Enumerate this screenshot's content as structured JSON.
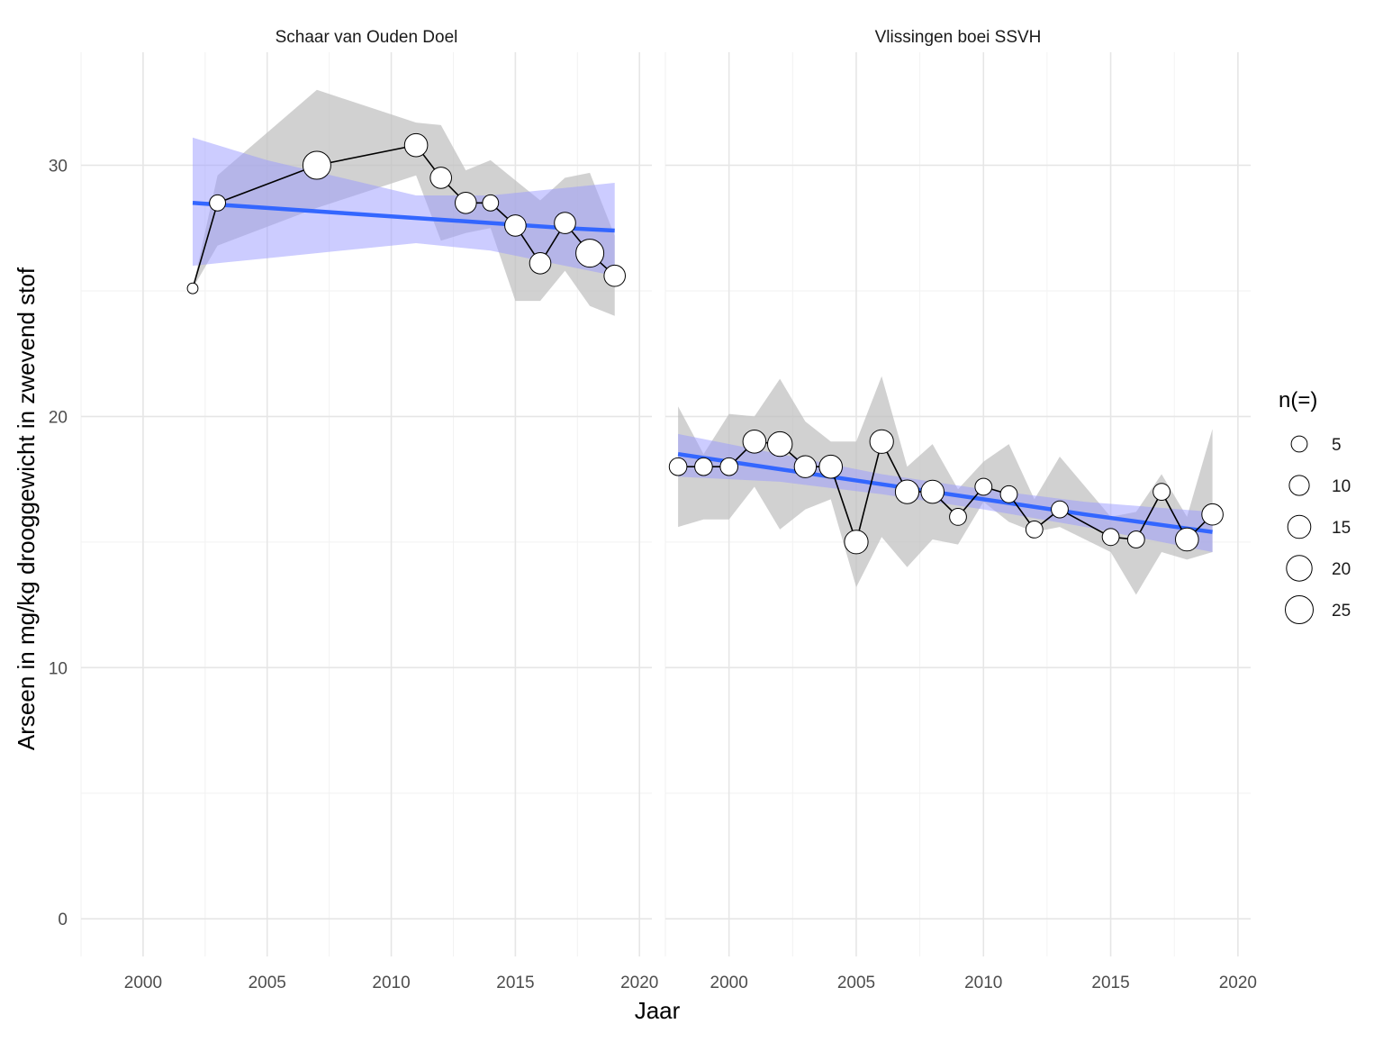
{
  "chart_data": {
    "type": "line",
    "xlabel": "Jaar",
    "ylabel": "Arseen in mg/kg drooggewicht in zwevend stof",
    "xlim": [
      1997.5,
      2020.5
    ],
    "ylim": [
      -1.5,
      34.5
    ],
    "x_ticks": [
      2000,
      2005,
      2010,
      2015,
      2020
    ],
    "y_ticks": [
      0,
      10,
      20,
      30
    ],
    "grid": true,
    "colors": {
      "trend_line": "#3366ff",
      "trend_band": "#9999ff",
      "range_band": "#bebebe",
      "point_fill": "#ffffff",
      "point_stroke": "#000000",
      "grid": "#e6e6e6"
    },
    "legend": {
      "title": "n(=)",
      "placement": "right",
      "sizes": [
        5,
        10,
        15,
        20,
        25
      ],
      "labels": [
        "5",
        "10",
        "15",
        "20",
        "25"
      ]
    },
    "panels": [
      {
        "strip": "Schaar van Ouden Doel",
        "points": [
          {
            "x": 2002,
            "y": 25.1,
            "n": 1
          },
          {
            "x": 2003,
            "y": 28.5,
            "n": 5
          },
          {
            "x": 2007,
            "y": 30.0,
            "n": 25
          },
          {
            "x": 2011,
            "y": 30.8,
            "n": 15
          },
          {
            "x": 2012,
            "y": 29.5,
            "n": 12
          },
          {
            "x": 2013,
            "y": 28.5,
            "n": 12
          },
          {
            "x": 2014,
            "y": 28.5,
            "n": 5
          },
          {
            "x": 2015,
            "y": 27.6,
            "n": 12
          },
          {
            "x": 2016,
            "y": 26.1,
            "n": 12
          },
          {
            "x": 2017,
            "y": 27.7,
            "n": 12
          },
          {
            "x": 2018,
            "y": 26.5,
            "n": 25
          },
          {
            "x": 2019,
            "y": 25.6,
            "n": 12
          }
        ],
        "range_band": [
          {
            "x": 2002,
            "lo": 25.1,
            "hi": 25.1
          },
          {
            "x": 2003,
            "lo": 26.8,
            "hi": 29.6
          },
          {
            "x": 2007,
            "lo": 28.3,
            "hi": 33.0
          },
          {
            "x": 2011,
            "lo": 29.6,
            "hi": 31.7
          },
          {
            "x": 2012,
            "lo": 27.0,
            "hi": 31.6
          },
          {
            "x": 2013,
            "lo": 27.3,
            "hi": 29.8
          },
          {
            "x": 2014,
            "lo": 27.5,
            "hi": 30.2
          },
          {
            "x": 2015,
            "lo": 24.6,
            "hi": 29.4
          },
          {
            "x": 2016,
            "lo": 24.6,
            "hi": 28.6
          },
          {
            "x": 2017,
            "lo": 25.8,
            "hi": 29.5
          },
          {
            "x": 2018,
            "lo": 24.4,
            "hi": 29.7
          },
          {
            "x": 2019,
            "lo": 24.0,
            "hi": 27.2
          }
        ],
        "trend": [
          {
            "x": 2002,
            "y": 28.5,
            "lo": 26.0,
            "hi": 31.1
          },
          {
            "x": 2005,
            "y": 28.3,
            "lo": 26.3,
            "hi": 30.2
          },
          {
            "x": 2008,
            "y": 28.1,
            "lo": 26.6,
            "hi": 29.5
          },
          {
            "x": 2011,
            "y": 27.9,
            "lo": 26.9,
            "hi": 28.8
          },
          {
            "x": 2014,
            "y": 27.7,
            "lo": 26.6,
            "hi": 28.8
          },
          {
            "x": 2017,
            "y": 27.5,
            "lo": 26.0,
            "hi": 29.1
          },
          {
            "x": 2019,
            "y": 27.4,
            "lo": 25.6,
            "hi": 29.3
          }
        ]
      },
      {
        "strip": "Vlissingen boei SSVH",
        "points": [
          {
            "x": 1998,
            "y": 18.0,
            "n": 7
          },
          {
            "x": 1999,
            "y": 18.0,
            "n": 7
          },
          {
            "x": 2000,
            "y": 18.0,
            "n": 7
          },
          {
            "x": 2001,
            "y": 19.0,
            "n": 15
          },
          {
            "x": 2002,
            "y": 18.9,
            "n": 18
          },
          {
            "x": 2003,
            "y": 18.0,
            "n": 13
          },
          {
            "x": 2004,
            "y": 18.0,
            "n": 15
          },
          {
            "x": 2005,
            "y": 15.0,
            "n": 16
          },
          {
            "x": 2006,
            "y": 19.0,
            "n": 16
          },
          {
            "x": 2007,
            "y": 17.0,
            "n": 16
          },
          {
            "x": 2008,
            "y": 17.0,
            "n": 15
          },
          {
            "x": 2009,
            "y": 16.0,
            "n": 6
          },
          {
            "x": 2010,
            "y": 17.2,
            "n": 6
          },
          {
            "x": 2011,
            "y": 16.9,
            "n": 6
          },
          {
            "x": 2012,
            "y": 15.5,
            "n": 6
          },
          {
            "x": 2013,
            "y": 16.3,
            "n": 6
          },
          {
            "x": 2015,
            "y": 15.2,
            "n": 6
          },
          {
            "x": 2016,
            "y": 15.1,
            "n": 6
          },
          {
            "x": 2017,
            "y": 17.0,
            "n": 6
          },
          {
            "x": 2018,
            "y": 15.1,
            "n": 15
          },
          {
            "x": 2019,
            "y": 16.1,
            "n": 12
          }
        ],
        "range_band": [
          {
            "x": 1998,
            "lo": 15.6,
            "hi": 20.4
          },
          {
            "x": 1999,
            "lo": 15.9,
            "hi": 18.5
          },
          {
            "x": 2000,
            "lo": 15.9,
            "hi": 20.1
          },
          {
            "x": 2001,
            "lo": 17.2,
            "hi": 20.0
          },
          {
            "x": 2002,
            "lo": 15.5,
            "hi": 21.5
          },
          {
            "x": 2003,
            "lo": 16.3,
            "hi": 19.8
          },
          {
            "x": 2004,
            "lo": 16.7,
            "hi": 19.0
          },
          {
            "x": 2005,
            "lo": 13.2,
            "hi": 19.0
          },
          {
            "x": 2006,
            "lo": 15.2,
            "hi": 21.6
          },
          {
            "x": 2007,
            "lo": 14.0,
            "hi": 18.0
          },
          {
            "x": 2008,
            "lo": 15.1,
            "hi": 18.9
          },
          {
            "x": 2009,
            "lo": 14.9,
            "hi": 17.1
          },
          {
            "x": 2010,
            "lo": 16.6,
            "hi": 18.2
          },
          {
            "x": 2011,
            "lo": 15.8,
            "hi": 18.9
          },
          {
            "x": 2012,
            "lo": 15.4,
            "hi": 16.7
          },
          {
            "x": 2013,
            "lo": 15.6,
            "hi": 18.4
          },
          {
            "x": 2015,
            "lo": 14.6,
            "hi": 16.0
          },
          {
            "x": 2016,
            "lo": 12.9,
            "hi": 16.2
          },
          {
            "x": 2017,
            "lo": 14.6,
            "hi": 17.7
          },
          {
            "x": 2018,
            "lo": 14.3,
            "hi": 16.0
          },
          {
            "x": 2019,
            "lo": 14.6,
            "hi": 19.5
          }
        ],
        "trend": [
          {
            "x": 1998,
            "y": 18.5,
            "lo": 17.6,
            "hi": 19.3
          },
          {
            "x": 2002,
            "y": 17.9,
            "lo": 17.4,
            "hi": 18.5
          },
          {
            "x": 2006,
            "y": 17.3,
            "lo": 16.9,
            "hi": 17.7
          },
          {
            "x": 2010,
            "y": 16.7,
            "lo": 16.3,
            "hi": 17.1
          },
          {
            "x": 2014,
            "y": 16.1,
            "lo": 15.6,
            "hi": 16.6
          },
          {
            "x": 2019,
            "y": 15.4,
            "lo": 14.6,
            "hi": 16.2
          }
        ]
      }
    ]
  }
}
